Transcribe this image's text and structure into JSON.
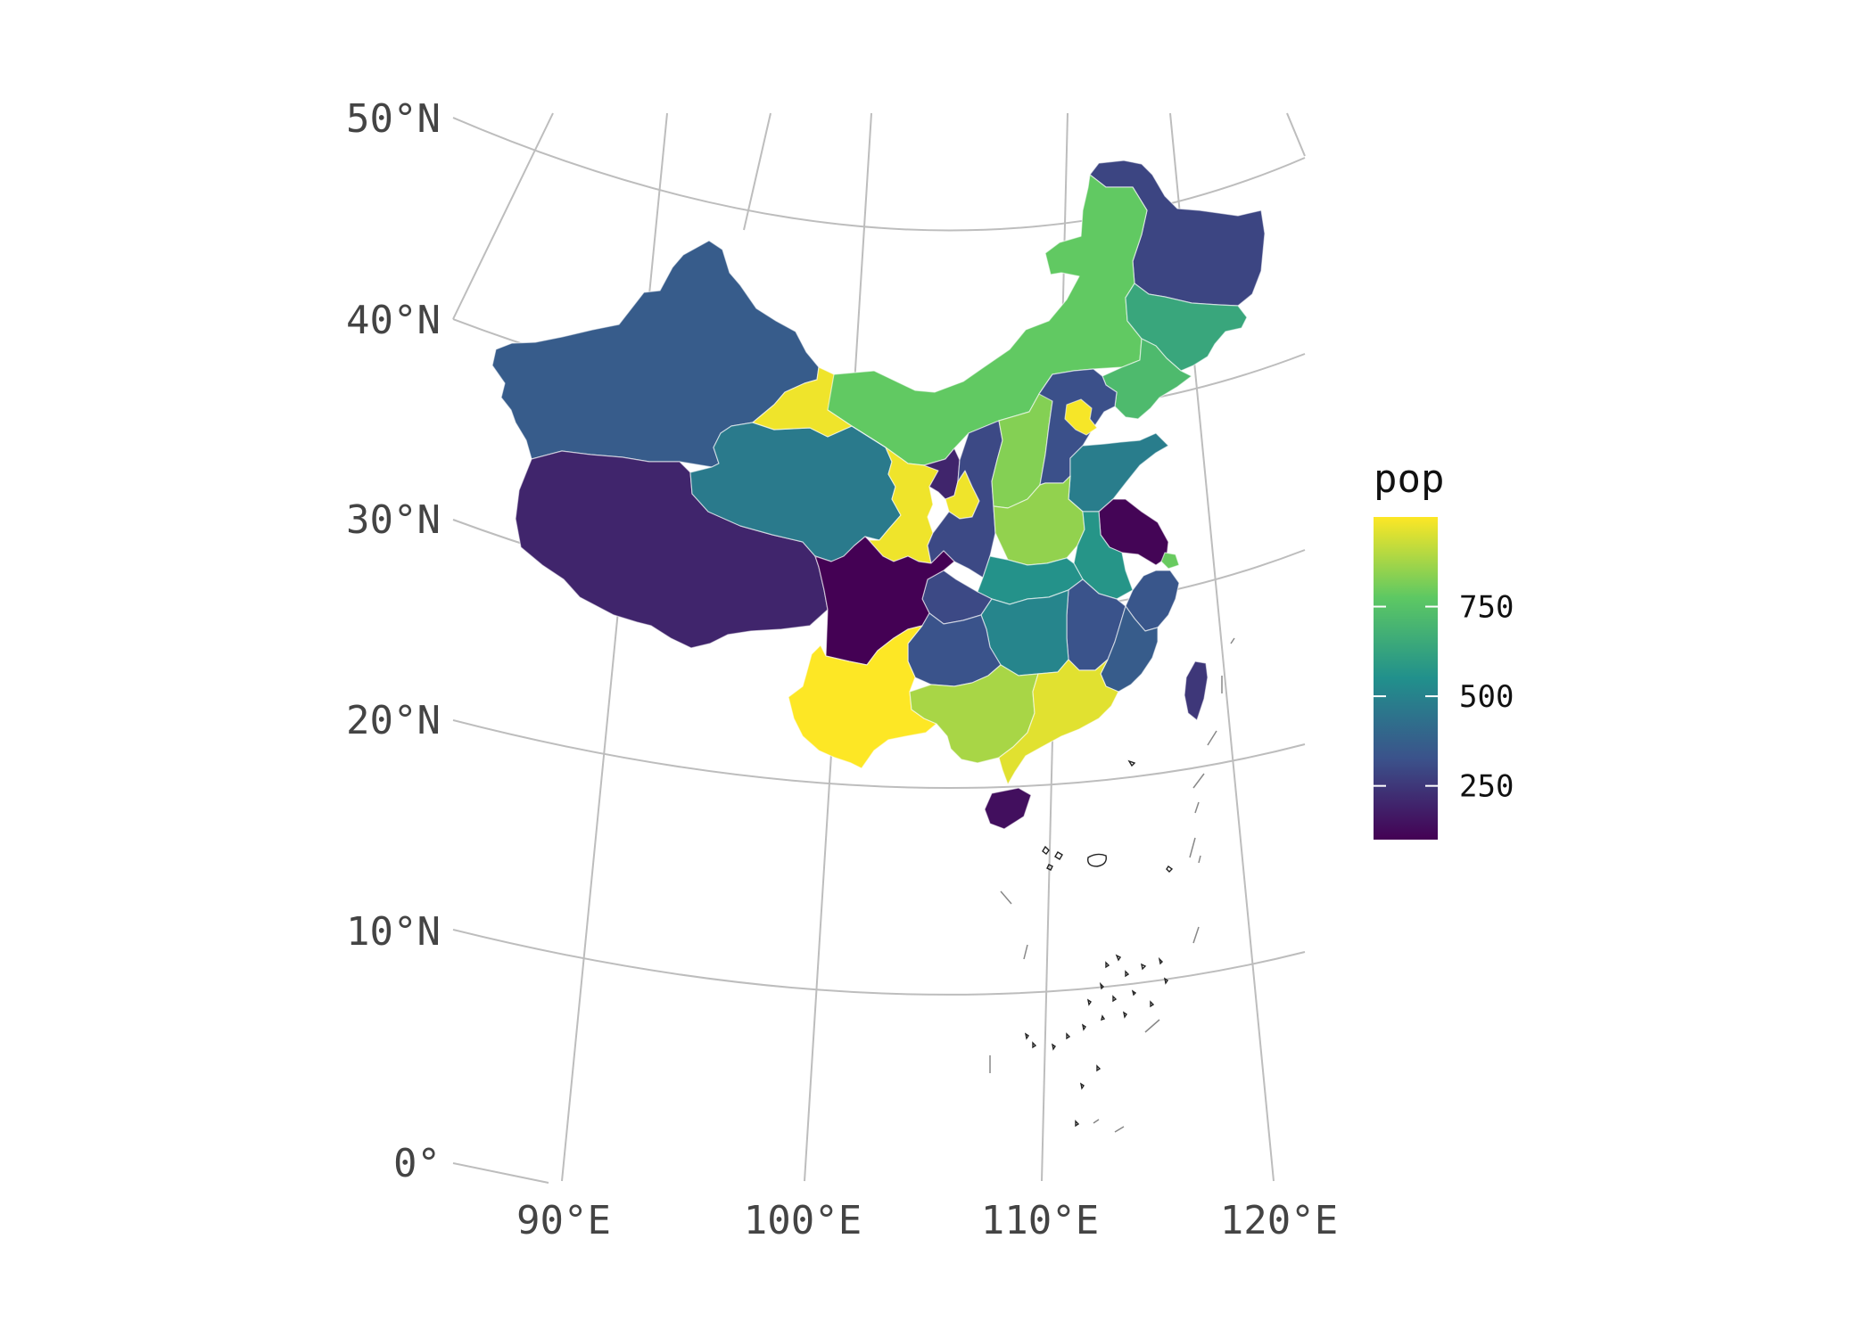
{
  "map": {
    "projection": "conic",
    "lat_ticks": [
      {
        "value": 50,
        "label": "50°N"
      },
      {
        "value": 40,
        "label": "40°N"
      },
      {
        "value": 30,
        "label": "30°N"
      },
      {
        "value": 20,
        "label": "20°N"
      },
      {
        "value": 10,
        "label": "10°N"
      },
      {
        "value": 0,
        "label": "0°"
      }
    ],
    "lon_ticks": [
      {
        "value": 90,
        "label": "90°E"
      },
      {
        "value": 100,
        "label": "100°E"
      },
      {
        "value": 110,
        "label": "110°E"
      },
      {
        "value": 120,
        "label": "120°E"
      }
    ],
    "grid": true,
    "provinces": [
      {
        "key": "heilongjiang",
        "pop": 290
      },
      {
        "key": "jilin",
        "pop": 640
      },
      {
        "key": "liaoning",
        "pop": 720
      },
      {
        "key": "inner_mongolia",
        "pop": 780
      },
      {
        "key": "xinjiang",
        "pop": 360
      },
      {
        "key": "tibet",
        "pop": 200
      },
      {
        "key": "qinghai",
        "pop": 470
      },
      {
        "key": "gansu",
        "pop": 980
      },
      {
        "key": "ningxia",
        "pop": 200
      },
      {
        "key": "shaanxi",
        "pop": 300
      },
      {
        "key": "shanxi",
        "pop": 830
      },
      {
        "key": "hebei",
        "pop": 320
      },
      {
        "key": "beijing",
        "pop": 990
      },
      {
        "key": "shandong",
        "pop": 480
      },
      {
        "key": "henan",
        "pop": 850
      },
      {
        "key": "jiangsu",
        "pop": 110
      },
      {
        "key": "shanghai",
        "pop": 790
      },
      {
        "key": "anhui",
        "pop": 570
      },
      {
        "key": "hubei",
        "pop": 560
      },
      {
        "key": "chongqing",
        "pop": 300
      },
      {
        "key": "sichuan",
        "pop": 100
      },
      {
        "key": "zhejiang",
        "pop": 340
      },
      {
        "key": "jiangxi",
        "pop": 330
      },
      {
        "key": "hunan",
        "pop": 510
      },
      {
        "key": "guizhou",
        "pop": 330
      },
      {
        "key": "fujian",
        "pop": 360
      },
      {
        "key": "taiwan",
        "pop": 250
      },
      {
        "key": "yunnan",
        "pop": 1000
      },
      {
        "key": "guangxi",
        "pop": 880
      },
      {
        "key": "guangdong",
        "pop": 960
      },
      {
        "key": "hainan",
        "pop": 140
      }
    ]
  },
  "legend": {
    "title": "pop",
    "min": 100,
    "max": 1000,
    "position": "right",
    "colormap": "viridis",
    "ticks": [
      {
        "value": 750,
        "label": "750"
      },
      {
        "value": 500,
        "label": "500"
      },
      {
        "value": 250,
        "label": "250"
      }
    ]
  }
}
